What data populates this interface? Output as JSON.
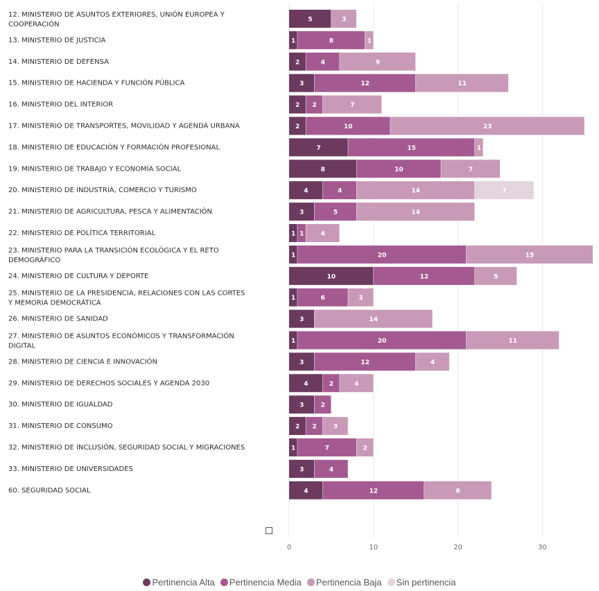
{
  "chart_data": {
    "type": "bar",
    "orientation": "horizontal",
    "stacked": true,
    "categories": [
      "12. MINISTERIO DE ASUNTOS EXTERIORES, UNIÓN EUROPEA Y COOPERACIÓN",
      "13. MINISTERIO DE JUSTICIA",
      "14. MINISTERIO DE DEFENSA",
      "15. MINISTERIO DE HACIENDA Y FUNCIÓN PÚBLICA",
      "16. MINISTERIO DEL INTERIOR",
      "17. MINISTERIO DE TRANSPORTES, MOVILIDAD Y AGENDA URBANA",
      "18. MINISTERIO DE EDUCACIÓN Y FORMACIÓN PROFESIONAL",
      "19. MINISTERIO DE TRABAJO Y ECONOMÍA SOCIAL",
      "20. MINISTERIO DE INDUSTRIA, COMERCIO Y TURISMO",
      "21. MINISTERIO DE AGRICULTURA, PESCA Y ALIMENTACIÓN",
      "22. MINISTERIO DE POLÍTICA TERRITORIAL",
      "23. MINISTERIO PARA LA TRANSICIÓN ECOLÓGICA Y EL RETO DEMOGRÁFICO",
      "24. MINISTERIO DE CULTURA Y DEPORTE",
      "25. MINISTERIO DE LA PRESIDENCIA, RELACIONES CON LAS CORTES Y MEMORIA DEMOCRÁTICA",
      "26. MINISTERIO DE SANIDAD",
      "27. MINISTERIO DE ASUNTOS ECONÓMICOS Y TRANSFORMACIÓN DIGITAL",
      "28. MINISTERIO DE CIENCIA E INNOVACIÓN",
      "29. MINISTERIO DE DERECHOS SOCIALES Y AGENDA 2030",
      "30. MINISTERIO DE IGUALDAD",
      "31. MINISTERIO DE CONSUMO",
      "32. MINISTERIO DE INCLUSIÓN, SEGURIDAD SOCIAL Y MIGRACIONES",
      "33. MINISTERIO DE UNIVERSIDADES",
      "60. SEGURIDAD SOCIAL"
    ],
    "series": [
      {
        "name": "Pertinencia Alta",
        "color": "#6b3a5e",
        "values": [
          5,
          1,
          2,
          3,
          2,
          2,
          7,
          8,
          4,
          3,
          1,
          1,
          10,
          1,
          3,
          1,
          3,
          4,
          3,
          2,
          1,
          3,
          4
        ]
      },
      {
        "name": "Pertinencia Media",
        "color": "#a45a91",
        "values": [
          0,
          8,
          4,
          12,
          2,
          10,
          15,
          10,
          4,
          5,
          1,
          20,
          12,
          6,
          0,
          20,
          12,
          2,
          2,
          2,
          7,
          4,
          12
        ]
      },
      {
        "name": "Pertinencia Baja",
        "color": "#c99ab8",
        "values": [
          3,
          1,
          9,
          11,
          7,
          23,
          1,
          7,
          14,
          14,
          4,
          15,
          5,
          3,
          14,
          11,
          4,
          4,
          0,
          3,
          2,
          0,
          8
        ]
      },
      {
        "name": "Sin pertinencia",
        "color": "#e2d5de",
        "values": [
          0,
          0,
          0,
          0,
          0,
          0,
          0,
          0,
          7,
          0,
          0,
          0,
          0,
          0,
          0,
          0,
          0,
          0,
          0,
          0,
          0,
          0,
          0
        ]
      }
    ],
    "xticks": [
      0,
      10,
      20,
      30
    ],
    "xlim": [
      0,
      36
    ],
    "grid": true,
    "legend_position": "bottom"
  }
}
